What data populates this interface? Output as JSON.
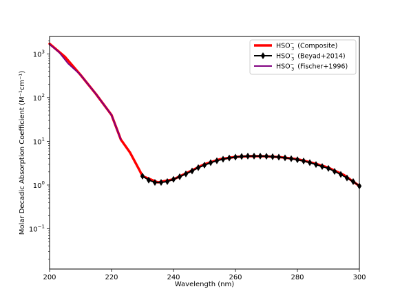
{
  "chart_data": {
    "type": "line",
    "title": "",
    "xlabel": "Wavelength (nm)",
    "ylabel": "Molar Decadic Absorption Coefficient (M⁻¹cm⁻¹)",
    "xlim": [
      200,
      300
    ],
    "ylim": [
      0.012,
      2500
    ],
    "yscale": "log",
    "grid": false,
    "legend_position": "top-right",
    "x_ticks": [
      200,
      220,
      240,
      260,
      280,
      300
    ],
    "y_ticks": [
      {
        "value": 1000,
        "label": "10",
        "exp": "3"
      },
      {
        "value": 100,
        "label": "10",
        "exp": "2"
      },
      {
        "value": 10,
        "label": "10",
        "exp": "1"
      },
      {
        "value": 1,
        "label": "10",
        "exp": "0"
      },
      {
        "value": 0.1,
        "label": "10",
        "exp": "−1"
      }
    ],
    "series": [
      {
        "name": "HSO₃⁻ (Composite)",
        "legend_base": "HSO",
        "legend_sub": "3",
        "legend_sup": "−",
        "legend_suffix": "(Composite)",
        "color": "#ff0000",
        "marker": "none",
        "x": [
          200,
          205,
          210,
          215,
          220,
          223,
          226,
          229,
          230,
          235,
          240,
          245,
          250,
          255,
          260,
          265,
          270,
          275,
          280,
          285,
          290,
          295,
          300
        ],
        "y": [
          1700,
          850,
          330,
          120,
          40,
          11,
          5.5,
          2.2,
          1.6,
          1.15,
          1.35,
          2.0,
          3.0,
          3.9,
          4.4,
          4.6,
          4.55,
          4.3,
          3.9,
          3.2,
          2.5,
          1.7,
          0.95
        ]
      },
      {
        "name": "HSO₃⁻ (Beyad+2014)",
        "legend_base": "HSO",
        "legend_sub": "3",
        "legend_sup": "−",
        "legend_suffix": "(Beyad+2014)",
        "color": "#000000",
        "marker": "diamond",
        "x": [
          230,
          232,
          234,
          236,
          238,
          240,
          242,
          244,
          246,
          248,
          250,
          252,
          254,
          256,
          258,
          260,
          262,
          264,
          266,
          268,
          270,
          272,
          274,
          276,
          278,
          280,
          282,
          284,
          286,
          288,
          290,
          292,
          294,
          296,
          298,
          300
        ],
        "y": [
          1.6,
          1.3,
          1.15,
          1.15,
          1.2,
          1.35,
          1.55,
          1.8,
          2.1,
          2.5,
          2.85,
          3.25,
          3.6,
          3.9,
          4.15,
          4.35,
          4.5,
          4.6,
          4.6,
          4.6,
          4.55,
          4.45,
          4.35,
          4.2,
          4.0,
          3.8,
          3.55,
          3.25,
          2.95,
          2.65,
          2.4,
          2.05,
          1.75,
          1.45,
          1.2,
          0.95
        ]
      },
      {
        "name": "HSO₃⁻ (Fischer+1996)",
        "legend_base": "HSO",
        "legend_sub": "3",
        "legend_sup": "−",
        "legend_suffix": "(Fischer+1996)",
        "color": "#800080",
        "marker": "none",
        "x": [
          200,
          203,
          206,
          210,
          215,
          220,
          223
        ],
        "y": [
          1650,
          1100,
          600,
          330,
          120,
          40,
          11
        ]
      }
    ]
  }
}
